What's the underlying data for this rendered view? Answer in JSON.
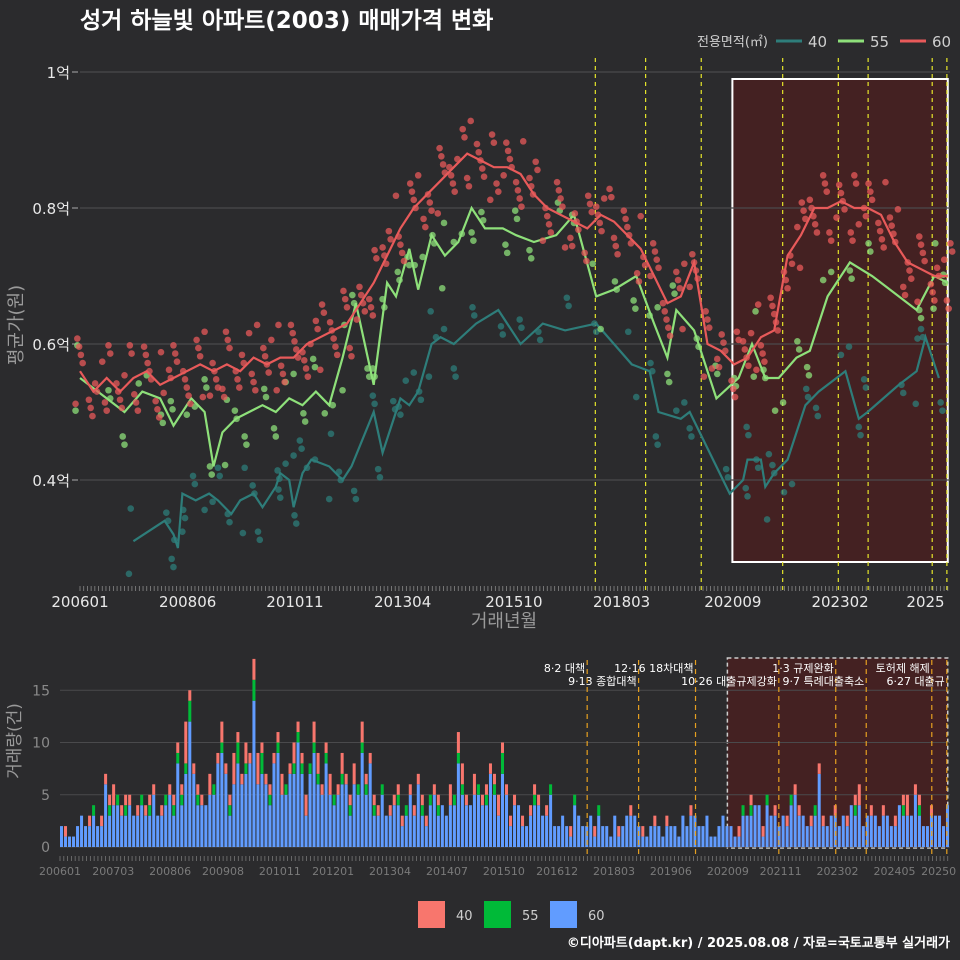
{
  "colors": {
    "background": "#2b2b2d",
    "grid": "#4a4a4c",
    "s40": "#2e7d7a",
    "s55": "#8ee07a",
    "s60": "#e85a5a",
    "bar40": "#f8766d",
    "bar55": "#00ba38",
    "bar60": "#619cff",
    "policy_upper": "#e6e62a",
    "policy_lower": "#e6a020",
    "highlight_fill": "#5a1a1a"
  },
  "chart_data": [
    {
      "type": "line",
      "title": "성거 하늘빛 아파트(2003) 매매가격 변화",
      "xlabel": "거래년월",
      "ylabel": "평균가(원)",
      "legend_title": "전용면적(㎡)",
      "legend_position": "top-right",
      "x_ticks": [
        "200601",
        "200806",
        "201011",
        "201304",
        "201510",
        "201803",
        "202009",
        "202302",
        "2025"
      ],
      "y_ticks": [
        "0.4억",
        "0.6억",
        "0.8억",
        "1억"
      ],
      "ylim": [
        0.25,
        1.0
      ],
      "grid": true,
      "policy_dates": [
        2017.58,
        2018.71,
        2019.96,
        2021.79,
        2023.04,
        2023.71,
        2025.15,
        2025.48
      ],
      "highlight_range": [
        2020.66,
        2025.5
      ],
      "series": [
        {
          "name": "40",
          "points": [
            [
              2007.2,
              0.31
            ],
            [
              2007.9,
              0.34
            ],
            [
              2008.1,
              0.32
            ],
            [
              2008.2,
              0.3
            ],
            [
              2008.3,
              0.38
            ],
            [
              2008.6,
              0.37
            ],
            [
              2008.9,
              0.38
            ],
            [
              2009.1,
              0.37
            ],
            [
              2009.4,
              0.35
            ],
            [
              2009.6,
              0.37
            ],
            [
              2009.9,
              0.38
            ],
            [
              2010.1,
              0.36
            ],
            [
              2010.4,
              0.39
            ],
            [
              2010.5,
              0.41
            ],
            [
              2010.7,
              0.4
            ],
            [
              2010.8,
              0.36
            ],
            [
              2011.0,
              0.41
            ],
            [
              2011.2,
              0.43
            ],
            [
              2011.6,
              0.42
            ],
            [
              2011.9,
              0.4
            ],
            [
              2012.1,
              0.42
            ],
            [
              2012.6,
              0.5
            ],
            [
              2012.8,
              0.44
            ],
            [
              2013.0,
              0.48
            ],
            [
              2013.2,
              0.52
            ],
            [
              2013.4,
              0.51
            ],
            [
              2013.6,
              0.53
            ],
            [
              2013.9,
              0.6
            ],
            [
              2014.1,
              0.61
            ],
            [
              2014.4,
              0.6
            ],
            [
              2014.9,
              0.63
            ],
            [
              2015.4,
              0.65
            ],
            [
              2015.9,
              0.6
            ],
            [
              2016.4,
              0.63
            ],
            [
              2016.9,
              0.62
            ],
            [
              2017.6,
              0.63
            ],
            [
              2018.4,
              0.57
            ],
            [
              2018.8,
              0.56
            ],
            [
              2019.0,
              0.5
            ],
            [
              2019.5,
              0.49
            ],
            [
              2019.7,
              0.5
            ],
            [
              2020.6,
              0.38
            ],
            [
              2020.9,
              0.4
            ],
            [
              2021.0,
              0.43
            ],
            [
              2021.3,
              0.43
            ],
            [
              2021.4,
              0.39
            ],
            [
              2021.6,
              0.41
            ],
            [
              2021.9,
              0.43
            ],
            [
              2022.3,
              0.51
            ],
            [
              2022.6,
              0.53
            ],
            [
              2023.2,
              0.56
            ],
            [
              2023.5,
              0.49
            ],
            [
              2023.7,
              0.5
            ],
            [
              2024.4,
              0.54
            ],
            [
              2024.8,
              0.56
            ],
            [
              2025.0,
              0.61
            ],
            [
              2025.3,
              0.55
            ]
          ]
        },
        {
          "name": "55",
          "points": [
            [
              2006.0,
              0.55
            ],
            [
              2006.6,
              0.52
            ],
            [
              2007.0,
              0.5
            ],
            [
              2007.4,
              0.53
            ],
            [
              2007.8,
              0.52
            ],
            [
              2008.1,
              0.48
            ],
            [
              2008.5,
              0.52
            ],
            [
              2008.8,
              0.5
            ],
            [
              2009.0,
              0.42
            ],
            [
              2009.2,
              0.47
            ],
            [
              2009.5,
              0.49
            ],
            [
              2009.8,
              0.5
            ],
            [
              2010.1,
              0.51
            ],
            [
              2010.4,
              0.5
            ],
            [
              2010.7,
              0.52
            ],
            [
              2011.0,
              0.51
            ],
            [
              2011.3,
              0.53
            ],
            [
              2011.6,
              0.51
            ],
            [
              2011.9,
              0.58
            ],
            [
              2012.2,
              0.66
            ],
            [
              2012.4,
              0.6
            ],
            [
              2012.6,
              0.54
            ],
            [
              2012.9,
              0.69
            ],
            [
              2013.1,
              0.67
            ],
            [
              2013.4,
              0.74
            ],
            [
              2013.6,
              0.68
            ],
            [
              2013.9,
              0.76
            ],
            [
              2014.2,
              0.73
            ],
            [
              2014.5,
              0.75
            ],
            [
              2014.8,
              0.8
            ],
            [
              2015.1,
              0.77
            ],
            [
              2015.5,
              0.77
            ],
            [
              2015.8,
              0.76
            ],
            [
              2016.2,
              0.75
            ],
            [
              2016.7,
              0.76
            ],
            [
              2017.1,
              0.79
            ],
            [
              2017.6,
              0.67
            ],
            [
              2018.0,
              0.68
            ],
            [
              2018.5,
              0.7
            ],
            [
              2018.9,
              0.63
            ],
            [
              2019.2,
              0.58
            ],
            [
              2019.4,
              0.65
            ],
            [
              2019.8,
              0.62
            ],
            [
              2020.3,
              0.52
            ],
            [
              2020.8,
              0.55
            ],
            [
              2021.1,
              0.6
            ],
            [
              2021.4,
              0.55
            ],
            [
              2021.7,
              0.55
            ],
            [
              2022.1,
              0.58
            ],
            [
              2022.4,
              0.59
            ],
            [
              2022.8,
              0.67
            ],
            [
              2023.3,
              0.72
            ],
            [
              2023.8,
              0.7
            ],
            [
              2024.8,
              0.65
            ],
            [
              2025.2,
              0.7
            ],
            [
              2025.5,
              0.69
            ]
          ]
        },
        {
          "name": "60",
          "points": [
            [
              2006.0,
              0.56
            ],
            [
              2006.3,
              0.53
            ],
            [
              2006.6,
              0.55
            ],
            [
              2006.9,
              0.53
            ],
            [
              2007.2,
              0.55
            ],
            [
              2007.5,
              0.56
            ],
            [
              2007.8,
              0.54
            ],
            [
              2008.1,
              0.55
            ],
            [
              2008.4,
              0.56
            ],
            [
              2008.7,
              0.57
            ],
            [
              2009.0,
              0.56
            ],
            [
              2009.3,
              0.57
            ],
            [
              2009.6,
              0.56
            ],
            [
              2009.9,
              0.58
            ],
            [
              2010.2,
              0.57
            ],
            [
              2010.5,
              0.58
            ],
            [
              2010.8,
              0.58
            ],
            [
              2011.1,
              0.6
            ],
            [
              2011.4,
              0.61
            ],
            [
              2011.7,
              0.62
            ],
            [
              2012.0,
              0.63
            ],
            [
              2012.3,
              0.66
            ],
            [
              2012.6,
              0.69
            ],
            [
              2012.9,
              0.73
            ],
            [
              2013.2,
              0.77
            ],
            [
              2013.5,
              0.8
            ],
            [
              2013.8,
              0.82
            ],
            [
              2014.1,
              0.84
            ],
            [
              2014.4,
              0.86
            ],
            [
              2014.7,
              0.88
            ],
            [
              2015.0,
              0.87
            ],
            [
              2015.3,
              0.86
            ],
            [
              2015.6,
              0.86
            ],
            [
              2015.9,
              0.85
            ],
            [
              2016.2,
              0.82
            ],
            [
              2016.5,
              0.8
            ],
            [
              2016.8,
              0.79
            ],
            [
              2017.1,
              0.78
            ],
            [
              2017.4,
              0.77
            ],
            [
              2017.7,
              0.79
            ],
            [
              2018.0,
              0.78
            ],
            [
              2018.3,
              0.76
            ],
            [
              2018.6,
              0.74
            ],
            [
              2018.9,
              0.7
            ],
            [
              2019.2,
              0.66
            ],
            [
              2019.5,
              0.67
            ],
            [
              2019.8,
              0.72
            ],
            [
              2020.1,
              0.6
            ],
            [
              2020.4,
              0.59
            ],
            [
              2020.7,
              0.57
            ],
            [
              2021.0,
              0.58
            ],
            [
              2021.3,
              0.61
            ],
            [
              2021.6,
              0.62
            ],
            [
              2021.9,
              0.73
            ],
            [
              2022.2,
              0.76
            ],
            [
              2022.5,
              0.8
            ],
            [
              2022.8,
              0.8
            ],
            [
              2023.1,
              0.81
            ],
            [
              2023.4,
              0.8
            ],
            [
              2023.7,
              0.8
            ],
            [
              2024.0,
              0.79
            ],
            [
              2024.3,
              0.75
            ],
            [
              2024.6,
              0.72
            ],
            [
              2024.9,
              0.71
            ],
            [
              2025.2,
              0.7
            ],
            [
              2025.5,
              0.7
            ]
          ]
        }
      ]
    },
    {
      "type": "bar",
      "stacked": true,
      "xlabel": "",
      "ylabel": "거래량(건)",
      "x_ticks": [
        "200601",
        "200703",
        "200806",
        "200908",
        "201011",
        "201201",
        "201304",
        "201407",
        "201510",
        "201612",
        "201803",
        "201906",
        "202009",
        "202111",
        "202302",
        "202405",
        "20250"
      ],
      "y_ticks": [
        "0",
        "5",
        "10",
        "15"
      ],
      "ylim": [
        0,
        18
      ],
      "grid": true,
      "legend_position": "bottom",
      "legend": [
        "40",
        "55",
        "60"
      ],
      "annotations": [
        {
          "date": 2017.58,
          "label": "8·2 대책"
        },
        {
          "date": 2018.71,
          "label": "9·13 종합대책"
        },
        {
          "date": 2019.96,
          "label": "12·16 18차대책"
        },
        {
          "date": 2021.79,
          "label": "10·26 대출규제강화"
        },
        {
          "date": 2023.04,
          "label": "1·3 규제완화"
        },
        {
          "date": 2023.71,
          "label": "9·7 특례대출축소"
        },
        {
          "date": 2025.15,
          "label": "토허제 해제"
        },
        {
          "date": 2025.48,
          "label": "6·27 대출규"
        }
      ],
      "monthly_totals": [
        2,
        2,
        1,
        1,
        2,
        3,
        2,
        3,
        4,
        2,
        3,
        7,
        5,
        6,
        5,
        4,
        5,
        5,
        3,
        4,
        5,
        4,
        5,
        6,
        3,
        4,
        5,
        6,
        5,
        10,
        6,
        12,
        15,
        8,
        6,
        5,
        4,
        7,
        6,
        9,
        12,
        8,
        5,
        9,
        11,
        7,
        10,
        9,
        18,
        9,
        10,
        7,
        6,
        9,
        11,
        7,
        6,
        8,
        10,
        12,
        9,
        5,
        8,
        12,
        9,
        6,
        10,
        7,
        5,
        6,
        9,
        7,
        5,
        8,
        6,
        12,
        7,
        9,
        5,
        4,
        6,
        3,
        4,
        5,
        6,
        3,
        4,
        6,
        4,
        7,
        5,
        3,
        5,
        6,
        5,
        4,
        3,
        6,
        5,
        11,
        8,
        5,
        4,
        7,
        6,
        5,
        6,
        8,
        7,
        5,
        10,
        6,
        3,
        5,
        4,
        3,
        2,
        4,
        6,
        5,
        3,
        4,
        6,
        2,
        2,
        3,
        2,
        2,
        5,
        3,
        2,
        2,
        3,
        2,
        4,
        2,
        2,
        1,
        3,
        2,
        2,
        3,
        4,
        3,
        2,
        2,
        1,
        2,
        3,
        2,
        1,
        3,
        2,
        2,
        1,
        3,
        2,
        4,
        3,
        2,
        2,
        3,
        1,
        1,
        2,
        3,
        2,
        2,
        1,
        2,
        4,
        3,
        5,
        4,
        4,
        2,
        5,
        3,
        4,
        2,
        3,
        3,
        5,
        6,
        4,
        3,
        2,
        3,
        4,
        8,
        3,
        2,
        3,
        4,
        2,
        3,
        3,
        4,
        5,
        6,
        2,
        3,
        4,
        3,
        2,
        4,
        3,
        2,
        3,
        4,
        5,
        5,
        3,
        6,
        5,
        2,
        2,
        4,
        3,
        3,
        2,
        4
      ],
      "share_40": [
        0.1,
        0.3,
        0.05,
        0.15,
        0.2,
        0.1
      ],
      "share_55": [
        0.1,
        0.05,
        0.15,
        0.05,
        0.1,
        0.05
      ]
    }
  ],
  "footer": {
    "credit": "©디아파트(dapt.kr) / 2025.08.08 / 자료=국토교통부 실거래가"
  }
}
